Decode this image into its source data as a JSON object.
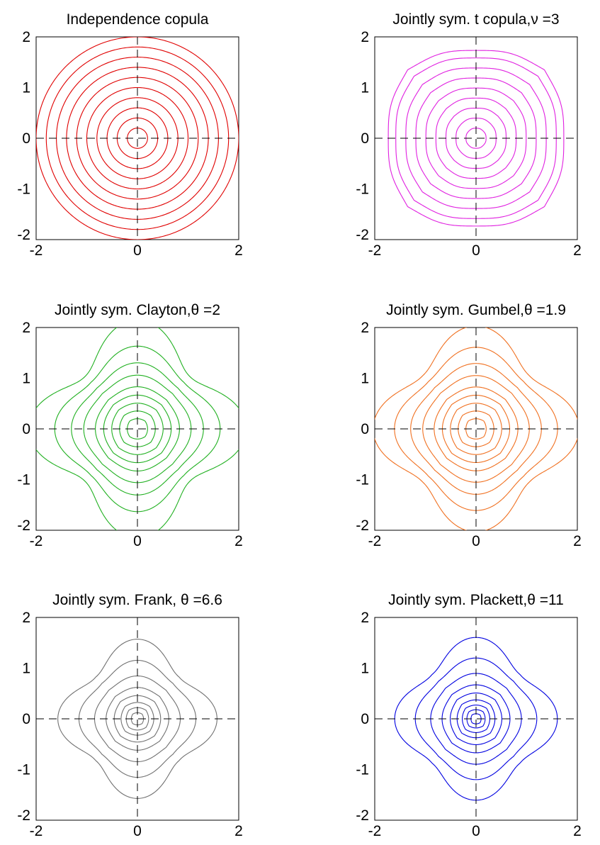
{
  "chart_data": [
    {
      "type": "contour",
      "title": "Independence copula",
      "family": "independence",
      "param": null,
      "color": "#e00000",
      "levels": [
        0.2,
        0.4,
        0.6,
        0.8,
        1.0,
        1.2,
        1.4,
        1.6,
        1.8,
        2.0
      ],
      "xlim": [
        -2,
        2
      ],
      "ylim": [
        -2,
        2
      ],
      "xticks": [
        "-2",
        "0",
        "2"
      ],
      "yticks": [
        "2",
        "1",
        "0",
        "-1",
        "-2"
      ],
      "crosshair": "dashed lines at x = 0 and y = 0"
    },
    {
      "type": "contour",
      "title": "Jointly sym. t copula,ν =3",
      "family": "t",
      "param": 3,
      "color": "#e020e0",
      "levels": [
        0.2,
        0.4,
        0.6,
        0.8,
        1.0,
        1.2,
        1.4,
        1.6,
        1.75
      ],
      "xlim": [
        -2,
        2
      ],
      "ylim": [
        -2,
        2
      ],
      "xticks": [
        "-2",
        "0",
        "2"
      ],
      "yticks": [
        "2",
        "1",
        "0",
        "-1",
        "-2"
      ],
      "crosshair": "dashed lines at x = 0 and y = 0"
    },
    {
      "type": "contour",
      "title": "Jointly sym. Clayton,θ =2",
      "family": "clayton",
      "param": 2,
      "color": "#20b020",
      "levels": [
        0.2,
        0.35,
        0.5,
        0.65,
        0.8,
        1.0,
        1.2,
        1.45,
        1.8
      ],
      "xlim": [
        -2,
        2
      ],
      "ylim": [
        -2,
        2
      ],
      "xticks": [
        "-2",
        "0",
        "2"
      ],
      "yticks": [
        "2",
        "1",
        "0",
        "-1",
        "-2"
      ],
      "crosshair": "dashed lines at x = 0 and y = 0"
    },
    {
      "type": "contour",
      "title": "Jointly sym. Gumbel,θ =1.9",
      "family": "gumbel",
      "param": 1.9,
      "color": "#f07020",
      "levels": [
        0.2,
        0.35,
        0.5,
        0.65,
        0.8,
        1.0,
        1.2,
        1.45,
        1.75
      ],
      "xlim": [
        -2,
        2
      ],
      "ylim": [
        -2,
        2
      ],
      "xticks": [
        "-2",
        "0",
        "2"
      ],
      "yticks": [
        "2",
        "1",
        "0",
        "-1",
        "-2"
      ],
      "crosshair": "dashed lines at x = 0 and y = 0"
    },
    {
      "type": "contour",
      "title": "Jointly sym. Frank, θ =6.6",
      "family": "frank",
      "param": 6.6,
      "color": "#707070",
      "levels": [
        0.12,
        0.22,
        0.32,
        0.45,
        0.6,
        0.8,
        1.05,
        1.35
      ],
      "xlim": [
        -2,
        2
      ],
      "ylim": [
        -2,
        2
      ],
      "xticks": [
        "-2",
        "0",
        "2"
      ],
      "yticks": [
        "2",
        "1",
        "0",
        "-1",
        "-2"
      ],
      "crosshair": "dashed lines at x = 0 and y = 0"
    },
    {
      "type": "contour",
      "title": "Jointly sym. Plackett,θ =11",
      "family": "plackett",
      "param": 11,
      "color": "#0000e0",
      "levels": [
        0.1,
        0.18,
        0.27,
        0.37,
        0.5,
        0.65,
        0.85,
        1.1,
        1.4
      ],
      "xlim": [
        -2,
        2
      ],
      "ylim": [
        -2,
        2
      ],
      "xticks": [
        "-2",
        "0",
        "2"
      ],
      "yticks": [
        "2",
        "1",
        "0",
        "-1",
        "-2"
      ],
      "crosshair": "dashed lines at x = 0 and y = 0"
    }
  ]
}
